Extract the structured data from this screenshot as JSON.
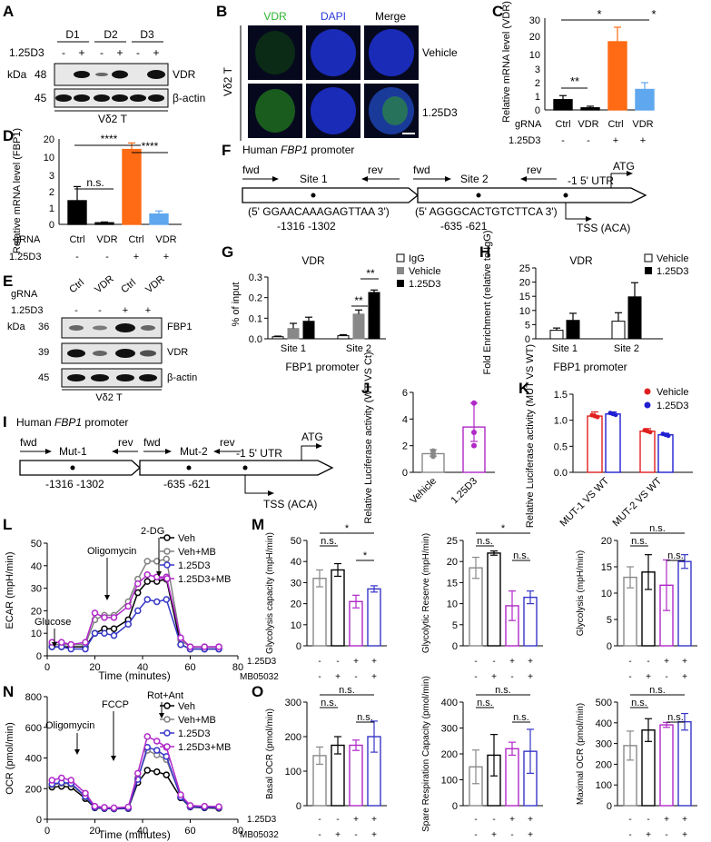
{
  "panels": [
    "A",
    "B",
    "C",
    "D",
    "E",
    "F",
    "G",
    "H",
    "I",
    "J",
    "K",
    "L",
    "M",
    "N",
    "O"
  ],
  "A": {
    "donors": [
      "D1",
      "D2",
      "D3"
    ],
    "treatment_label": "1.25D3",
    "signs": [
      "-",
      "+",
      "-",
      "+",
      "-",
      "+"
    ],
    "kda": "kDa",
    "rows": [
      {
        "mw": "48",
        "name": "VDR"
      },
      {
        "mw": "45",
        "name": "β-actin"
      }
    ],
    "cell": "Vδ2 T"
  },
  "B": {
    "channels": [
      "VDR",
      "DAPI",
      "Merge"
    ],
    "conditions": [
      "Vehicle",
      "1.25D3"
    ],
    "cell": "Vδ2 T",
    "colors": {
      "vdr": "#2db52d",
      "dapi": "#2b3ad6"
    }
  },
  "C": {
    "ylabel": "Relative mRNA level (VDR)",
    "yticks": [
      "0",
      "1",
      "2",
      "3",
      "10",
      "20",
      "30"
    ],
    "sig": [
      "*",
      "*",
      "**"
    ],
    "gRNA_label": "gRNA",
    "gRNA": [
      "Ctrl",
      "VDR",
      "Ctrl",
      "VDR"
    ],
    "treatment_label": "1.25D3",
    "signs": [
      "-",
      "-",
      "+",
      "+"
    ]
  },
  "D": {
    "ylabel": "Relative mRNA level (FBP1)",
    "yticks": [
      "0",
      "1",
      "2",
      "3",
      "10",
      "20"
    ],
    "sig": [
      "****",
      "****",
      "n.s."
    ],
    "gRNA_label": "gRNA",
    "gRNA": [
      "Ctrl",
      "VDR",
      "Ctrl",
      "VDR"
    ],
    "treatment_label": "1.25D3",
    "signs": [
      "-",
      "-",
      "+",
      "+"
    ]
  },
  "E": {
    "gRNA_label": "gRNA",
    "gRNA": [
      "Ctrl",
      "VDR",
      "Ctrl",
      "VDR"
    ],
    "treatment_label": "1.25D3",
    "signs": [
      "-",
      "-",
      "+",
      "+"
    ],
    "kda": "kDa",
    "rows": [
      {
        "mw": "36",
        "name": "FBP1"
      },
      {
        "mw": "39",
        "name": "VDR"
      },
      {
        "mw": "45",
        "name": "β-actin"
      }
    ],
    "cell": "Vδ2 T"
  },
  "F": {
    "title_prefix": "Human ",
    "gene": "FBP1",
    "title_suffix": " promoter",
    "fwd": "fwd",
    "rev": "rev",
    "site1": "Site 1",
    "site2": "Site 2",
    "seq1": "(5' GGAACAAAGAGTTAA 3')",
    "seq2": "(5' AGGGCACTGTCTTCA 3')",
    "pos1": "-1316  -1302",
    "pos2": "-635  -621",
    "utr": "-1  5' UTR",
    "atg": "ATG",
    "tss": "TSS (ACA)"
  },
  "G": {
    "title": "VDR",
    "ylabel": "% of input",
    "xlabel": "FBP1 promoter",
    "legend": [
      "IgG",
      "Vehicle",
      "1.25D3"
    ],
    "sig": [
      "**",
      "**"
    ]
  },
  "H": {
    "title": "VDR",
    "ylabel": "Fold Enrichment (relative to IgG)",
    "xlabel": "FBP1 promoter",
    "legend": [
      "Vehicle",
      "1.25D3"
    ]
  },
  "I": {
    "title_prefix": "Human ",
    "gene": "FBP1",
    "title_suffix": " promoter",
    "fwd": "fwd",
    "rev": "rev",
    "mut1": "Mut-1",
    "mut2": "Mut-2",
    "pos1": "-1316  -1302",
    "pos2": "-635  -621",
    "utr": "-1  5' UTR",
    "atg": "ATG",
    "tss": "TSS (ACA)"
  },
  "J": {
    "ylabel": "Relative Luciferase activity (WT VS Ct)"
  },
  "K": {
    "ylabel": "Relative Luciferase activity (MUT VS WT)",
    "legend": [
      "Vehicle",
      "1.25D3"
    ]
  },
  "L": {
    "ylabel": "ECAR (mpH/min)",
    "xlabel": "Time (minutes)",
    "annotations": [
      "Glucose",
      "Oligomycin",
      "2-DG"
    ],
    "legend": [
      "Veh",
      "Veh+MB",
      "1.25D3",
      "1.25D3+MB"
    ]
  },
  "M": {
    "treat1": "1.25D3",
    "treat2": "MB05032",
    "sig_a": [
      "*",
      "n.s.",
      "*"
    ],
    "sig_b": [
      "*",
      "n.s.",
      "n.s."
    ],
    "sig_c": [
      "n.s.",
      "n.s.",
      "n.s."
    ]
  },
  "N": {
    "ylabel": "OCR (pmol/min)",
    "xlabel": "Time (minutes)",
    "annotations": [
      "Oligomycin",
      "FCCP",
      "Rot+Ant"
    ],
    "legend": [
      "Veh",
      "Veh+MB",
      "1.25D3",
      "1.25D3+MB"
    ]
  },
  "O": {
    "treat1": "1.25D3",
    "treat2": "MB05032",
    "sig": [
      "n.s.",
      "n.s.",
      "n.s."
    ]
  },
  "colors": {
    "veh": "#000000",
    "vehmb": "#808080",
    "d3": "#3535c8",
    "d3mb": "#b028c8",
    "ctrl": "#000000",
    "orange": "#ff6a14",
    "blue": "#5fa7ee",
    "red": "#e02020",
    "purple": "#b028c8"
  },
  "chart_data": [
    {
      "type": "bar",
      "id": "C",
      "categories": [
        "Ctrl -",
        "VDR -",
        "Ctrl +",
        "VDR +"
      ],
      "values": [
        0.75,
        0.15,
        18,
        1.5
      ],
      "errors": [
        0.3,
        0.12,
        8,
        0.5
      ],
      "ylabel": "Relative mRNA level (VDR)"
    },
    {
      "type": "bar",
      "id": "D",
      "categories": [
        "Ctrl -",
        "VDR -",
        "Ctrl +",
        "VDR +"
      ],
      "values": [
        1.5,
        0.1,
        16,
        0.65
      ],
      "errors": [
        0.9,
        0.05,
        3,
        0.2
      ],
      "ylabel": "Relative mRNA level (FBP1)"
    },
    {
      "type": "bar",
      "id": "G",
      "categories": [
        "Site 1",
        "Site 2"
      ],
      "series": [
        {
          "name": "IgG",
          "values": [
            0.01,
            0.015
          ],
          "errors": [
            0.003,
            0.005
          ]
        },
        {
          "name": "Vehicle",
          "values": [
            0.05,
            0.12
          ],
          "errors": [
            0.025,
            0.02
          ]
        },
        {
          "name": "1.25D3",
          "values": [
            0.085,
            0.225
          ],
          "errors": [
            0.02,
            0.012
          ]
        }
      ],
      "ylim": [
        0,
        0.3
      ],
      "yticks": [
        0,
        0.1,
        0.2,
        0.3
      ],
      "ylabel": "% of input"
    },
    {
      "type": "bar",
      "id": "H",
      "categories": [
        "Site 1",
        "Site 2"
      ],
      "series": [
        {
          "name": "Vehicle",
          "values": [
            3,
            6.2
          ],
          "errors": [
            0.8,
            3
          ]
        },
        {
          "name": "1.25D3",
          "values": [
            6.5,
            14.8
          ],
          "errors": [
            2.5,
            5
          ]
        }
      ],
      "ylim": [
        0,
        25
      ],
      "yticks": [
        0,
        5,
        10,
        15,
        20,
        25
      ],
      "ylabel": "Fold Enrichment (relative to IgG)"
    },
    {
      "type": "bar",
      "id": "J",
      "categories": [
        "Vehicle",
        "1.25D3"
      ],
      "values": [
        1.4,
        3.4
      ],
      "errors": [
        0.3,
        1.8
      ],
      "points": [
        [
          1.2,
          1.6,
          1.4
        ],
        [
          2.0,
          3.0,
          5.2
        ]
      ],
      "ylim": [
        0,
        6
      ],
      "yticks": [
        0,
        2,
        4,
        6
      ]
    },
    {
      "type": "bar",
      "id": "K",
      "categories": [
        "MUT-1 VS WT",
        "MUT-2 VS WT"
      ],
      "series": [
        {
          "name": "Vehicle",
          "values": [
            1.08,
            0.79
          ],
          "errors": [
            0.08,
            0.05
          ]
        },
        {
          "name": "1.25D3",
          "values": [
            1.12,
            0.72
          ],
          "errors": [
            0.04,
            0.03
          ]
        }
      ],
      "ylim": [
        0,
        1.5
      ],
      "yticks": [
        0,
        0.5,
        1.0,
        1.5
      ]
    },
    {
      "type": "line",
      "id": "L",
      "x": [
        2,
        6,
        10,
        16,
        20,
        24,
        28,
        34,
        38,
        42,
        46,
        50,
        56,
        60,
        66,
        72
      ],
      "series": [
        {
          "name": "Veh",
          "values": [
            4,
            4,
            4,
            4,
            10,
            12,
            12,
            16,
            28,
            33,
            33,
            34,
            5,
            3,
            3,
            3
          ]
        },
        {
          "name": "Veh+MB",
          "values": [
            5,
            5,
            5,
            5,
            16,
            18,
            18,
            24,
            34,
            42,
            42,
            43,
            7,
            4,
            4,
            4
          ]
        },
        {
          "name": "1.25D3",
          "values": [
            4,
            4,
            3,
            3,
            10,
            10,
            9,
            14,
            20,
            25,
            24,
            25,
            5,
            3,
            3,
            3
          ]
        },
        {
          "name": "1.25D3+MB",
          "values": [
            6,
            6,
            5,
            6,
            19,
            17,
            17,
            22,
            32,
            36,
            35,
            35,
            8,
            4,
            4,
            4
          ]
        }
      ],
      "xlim": [
        0,
        80
      ],
      "ylim": [
        0,
        50
      ],
      "xticks": [
        0,
        20,
        40,
        60,
        80
      ],
      "yticks": [
        0,
        10,
        20,
        30,
        40,
        50
      ]
    },
    {
      "type": "line",
      "id": "N",
      "x": [
        2,
        6,
        10,
        16,
        20,
        24,
        28,
        34,
        38,
        42,
        46,
        50,
        56,
        60,
        66,
        72
      ],
      "series": [
        {
          "name": "Veh",
          "values": [
            210,
            215,
            210,
            135,
            75,
            70,
            68,
            70,
            240,
            320,
            310,
            290,
            140,
            80,
            75,
            72
          ]
        },
        {
          "name": "Veh+MB",
          "values": [
            225,
            235,
            230,
            145,
            80,
            75,
            72,
            75,
            270,
            450,
            420,
            390,
            150,
            85,
            80,
            78
          ]
        },
        {
          "name": "1.25D3",
          "values": [
            230,
            240,
            235,
            150,
            78,
            72,
            70,
            72,
            260,
            470,
            450,
            410,
            145,
            82,
            78,
            76
          ]
        },
        {
          "name": "1.25D3+MB",
          "values": [
            255,
            270,
            255,
            170,
            85,
            78,
            75,
            80,
            300,
            540,
            510,
            470,
            160,
            90,
            85,
            82
          ]
        }
      ],
      "xlim": [
        0,
        80
      ],
      "ylim": [
        0,
        800
      ],
      "xticks": [
        0,
        20,
        40,
        60,
        80
      ],
      "yticks": [
        0,
        200,
        400,
        600,
        800
      ]
    },
    {
      "type": "bar",
      "id": "M1",
      "ylabel": "Glycolysis capacity (mpH/min)",
      "values": [
        32,
        36,
        21,
        27
      ],
      "errors": [
        4,
        3,
        3,
        1.5
      ],
      "ylim": [
        0,
        50
      ],
      "yticks": [
        0,
        10,
        20,
        30,
        40,
        50
      ]
    },
    {
      "type": "bar",
      "id": "M2",
      "ylabel": "Glycolytic Reserve (mpH/min)",
      "values": [
        18.5,
        22,
        9.5,
        11.5
      ],
      "errors": [
        2.5,
        0.5,
        3.5,
        1.5
      ],
      "ylim": [
        0,
        25
      ],
      "yticks": [
        0,
        5,
        10,
        15,
        20,
        25
      ]
    },
    {
      "type": "bar",
      "id": "M3",
      "ylabel": "Glycolysis (mpH/min)",
      "values": [
        13,
        14,
        11.5,
        16
      ],
      "errors": [
        2,
        3.3,
        4.8,
        1.3
      ],
      "ylim": [
        0,
        20
      ],
      "yticks": [
        0,
        5,
        10,
        15,
        20
      ]
    },
    {
      "type": "bar",
      "id": "O1",
      "ylabel": "Basal OCR (pmol/min)",
      "values": [
        145,
        175,
        175,
        200
      ],
      "errors": [
        25,
        25,
        15,
        45
      ],
      "ylim": [
        0,
        300
      ],
      "yticks": [
        0,
        100,
        200,
        300
      ]
    },
    {
      "type": "bar",
      "id": "O2",
      "ylabel": "Spare Respiration Capacity (pmol/min)",
      "values": [
        150,
        195,
        220,
        210
      ],
      "errors": [
        65,
        80,
        25,
        85
      ],
      "ylim": [
        0,
        400
      ],
      "yticks": [
        0,
        100,
        200,
        300,
        400
      ]
    },
    {
      "type": "bar",
      "id": "O3",
      "ylabel": "Maximal OCR (pmol/min)",
      "values": [
        290,
        365,
        390,
        405
      ],
      "errors": [
        70,
        55,
        12,
        40
      ],
      "ylim": [
        0,
        500
      ],
      "yticks": [
        0,
        100,
        200,
        300,
        400,
        500
      ]
    }
  ]
}
